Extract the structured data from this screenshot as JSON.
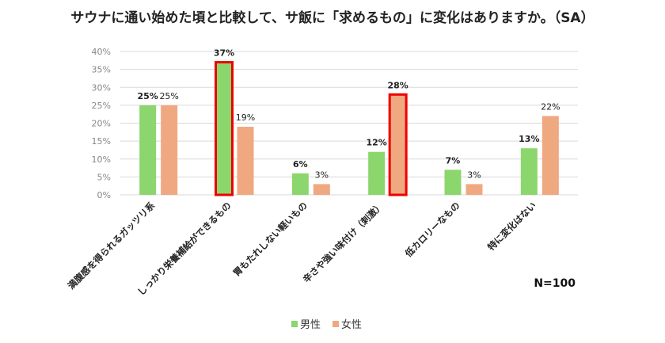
{
  "chart_data": {
    "type": "bar",
    "title": "サウナに通い始めた頃と比較して、サ飯に「求めるもの」に変化はありますか。（SA）",
    "categories": [
      "満腹感を得られるガッツリ系",
      "しっかり栄養補給ができるもの",
      "胃もたれしない軽いもの",
      "辛さや強い味付け（刺激）",
      "低カロリーなもの",
      "特に変化はない"
    ],
    "series": [
      {
        "name": "男性",
        "color": "#8cd66e",
        "values": [
          25,
          37,
          6,
          12,
          7,
          13
        ],
        "labels": [
          "25%",
          "37%",
          "6%",
          "12%",
          "7%",
          "13%"
        ]
      },
      {
        "name": "女性",
        "color": "#f0a880",
        "values": [
          25,
          19,
          3,
          28,
          3,
          22
        ],
        "labels": [
          "25%",
          "19%",
          "3%",
          "28%",
          "3%",
          "22%"
        ]
      }
    ],
    "highlighted": [
      {
        "series": 0,
        "category": 1
      },
      {
        "series": 1,
        "category": 3
      }
    ],
    "highlight_color": "#ee0000",
    "ylim": [
      0,
      40
    ],
    "yticks": [
      "0%",
      "5%",
      "10%",
      "15%",
      "20%",
      "25%",
      "30%",
      "35%",
      "40%"
    ],
    "grid": true,
    "legend": "bottom",
    "note": "N=100"
  }
}
